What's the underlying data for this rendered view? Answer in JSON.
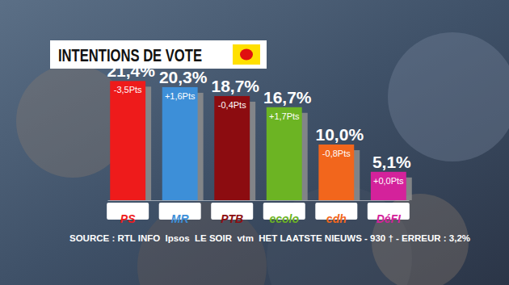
{
  "chart_data": {
    "type": "bar",
    "title": "INTENTIONS DE VOTE",
    "categories": [
      "PS",
      "MR",
      "PTB",
      "ecolo",
      "cdh",
      "DéFI"
    ],
    "values": [
      21.4,
      20.3,
      18.7,
      16.7,
      10.0,
      5.1
    ],
    "value_labels": [
      "21,4%",
      "20,3%",
      "18,7%",
      "16,7%",
      "10,0%",
      "5,1%"
    ],
    "change_labels": [
      "-3,5Pts",
      "+1,6Pts",
      "-0,4Pts",
      "+1,7Pts",
      "-0,8Pts",
      "+0,0Pts"
    ],
    "colors": [
      "#ee1b1b",
      "#3d8fd8",
      "#8c0c10",
      "#6cb423",
      "#f2661c",
      "#d4229b"
    ],
    "ylim": [
      0,
      25
    ],
    "data_labels": true,
    "tick_labels": "x",
    "source": "SOURCE : RTL INFO  Ipsos  LE SOIR  vtm  HET LAATSTE NIEUWS - 930 † - ERREUR : 3,2%"
  }
}
